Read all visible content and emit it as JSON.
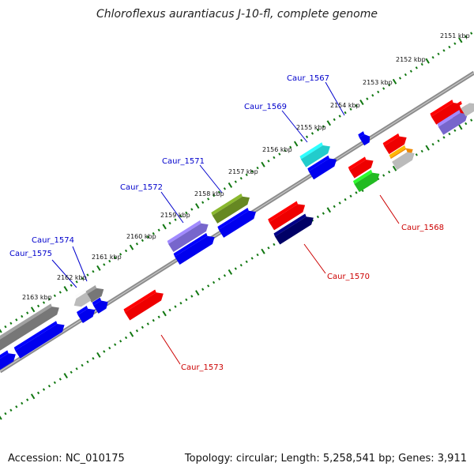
{
  "title": "Chloroflexus aurantiacus J-10-fl, complete genome",
  "footer": {
    "accession": "Accession: NC_010175",
    "summary": "Topology: circular; Length: 5,258,541 bp; Genes: 3,911"
  },
  "scale": {
    "labels": [
      "2151 kbp",
      "2152 kbp",
      "2153 kbp",
      "2154 kbp",
      "2155 kbp",
      "2156 kbp",
      "2157 kbp",
      "2158 kbp",
      "2159 kbp",
      "2160 kbp",
      "2161 kbp",
      "2162 kbp",
      "2163 kbp"
    ]
  },
  "gene_labels": {
    "top": [
      "Caur_1567",
      "Caur_1569",
      "Caur_1571",
      "Caur_1572",
      "Caur_1574",
      "Caur_1575"
    ],
    "bottom": [
      "Caur_1568",
      "Caur_1570",
      "Caur_1573"
    ]
  },
  "colors": {
    "top_label": "#0000cc",
    "bottom_label": "#cc0000",
    "tick": "#117711",
    "backbone": "#888888",
    "red": "#ee0000",
    "blue": "#0000ee",
    "navy": "#000066",
    "cyan": "#22cccc",
    "olive": "#668822",
    "lavender": "#7766cc",
    "green": "#22bb22",
    "orange": "#ee8800",
    "gray": "#777777",
    "lightgray": "#bbbbbb"
  }
}
